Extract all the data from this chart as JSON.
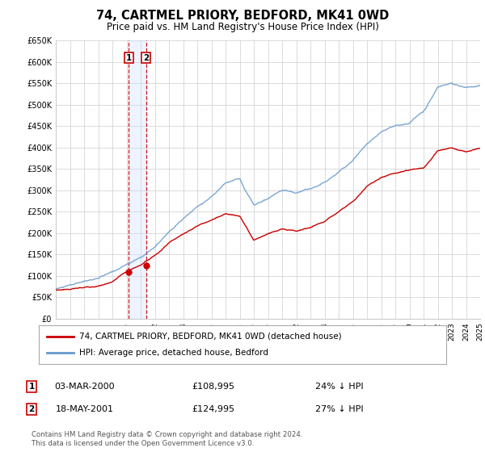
{
  "title": "74, CARTMEL PRIORY, BEDFORD, MK41 0WD",
  "subtitle": "Price paid vs. HM Land Registry's House Price Index (HPI)",
  "legend_label_red": "74, CARTMEL PRIORY, BEDFORD, MK41 0WD (detached house)",
  "legend_label_blue": "HPI: Average price, detached house, Bedford",
  "annotation1_label": "1",
  "annotation1_date": "03-MAR-2000",
  "annotation1_price": "£108,995",
  "annotation1_hpi": "24% ↓ HPI",
  "annotation1_year": 2000.17,
  "annotation1_value_red": 108995,
  "annotation2_label": "2",
  "annotation2_date": "18-MAY-2001",
  "annotation2_price": "£124,995",
  "annotation2_hpi": "27% ↓ HPI",
  "annotation2_year": 2001.38,
  "annotation2_value_red": 124995,
  "footer_line1": "Contains HM Land Registry data © Crown copyright and database right 2024.",
  "footer_line2": "This data is licensed under the Open Government Licence v3.0.",
  "ylim": [
    0,
    650000
  ],
  "xlim_start": 1995,
  "xlim_end": 2025,
  "yticks": [
    0,
    50000,
    100000,
    150000,
    200000,
    250000,
    300000,
    350000,
    400000,
    450000,
    500000,
    550000,
    600000,
    650000
  ],
  "ytick_labels": [
    "£0",
    "£50K",
    "£100K",
    "£150K",
    "£200K",
    "£250K",
    "£300K",
    "£350K",
    "£400K",
    "£450K",
    "£500K",
    "£550K",
    "£600K",
    "£650K"
  ],
  "color_red": "#cc0000",
  "color_blue": "#6699cc",
  "color_vline": "#cc0000",
  "color_vline_fill": "#cce0ff",
  "grid_color": "#cccccc",
  "background_color": "#ffffff",
  "hpi_years": [
    1995,
    1996,
    1997,
    1998,
    1999,
    2000,
    2001,
    2002,
    2003,
    2004,
    2005,
    2006,
    2007,
    2008,
    2009,
    2010,
    2011,
    2012,
    2013,
    2014,
    2015,
    2016,
    2017,
    2018,
    2019,
    2020,
    2021,
    2022,
    2023,
    2024,
    2025
  ],
  "hpi_vals": [
    70000,
    77000,
    84000,
    93000,
    105000,
    122000,
    140000,
    165000,
    197000,
    226000,
    255000,
    278000,
    312000,
    322000,
    263000,
    278000,
    292000,
    288000,
    298000,
    313000,
    340000,
    372000,
    412000,
    442000,
    456000,
    462000,
    492000,
    547000,
    555000,
    542000,
    547000
  ],
  "red_years": [
    1995,
    1996,
    1997,
    1998,
    1999,
    2000,
    2001,
    2002,
    2003,
    2004,
    2005,
    2006,
    2007,
    2008,
    2009,
    2010,
    2011,
    2012,
    2013,
    2014,
    2015,
    2016,
    2017,
    2018,
    2019,
    2020,
    2021,
    2022,
    2023,
    2024,
    2025
  ],
  "red_vals": [
    67000,
    70000,
    73000,
    78000,
    86000,
    108995,
    124995,
    148000,
    174000,
    194000,
    213000,
    228000,
    244000,
    238000,
    183000,
    196000,
    208000,
    203000,
    213000,
    228000,
    253000,
    278000,
    313000,
    333000,
    343000,
    348000,
    353000,
    393000,
    403000,
    393000,
    398000
  ]
}
